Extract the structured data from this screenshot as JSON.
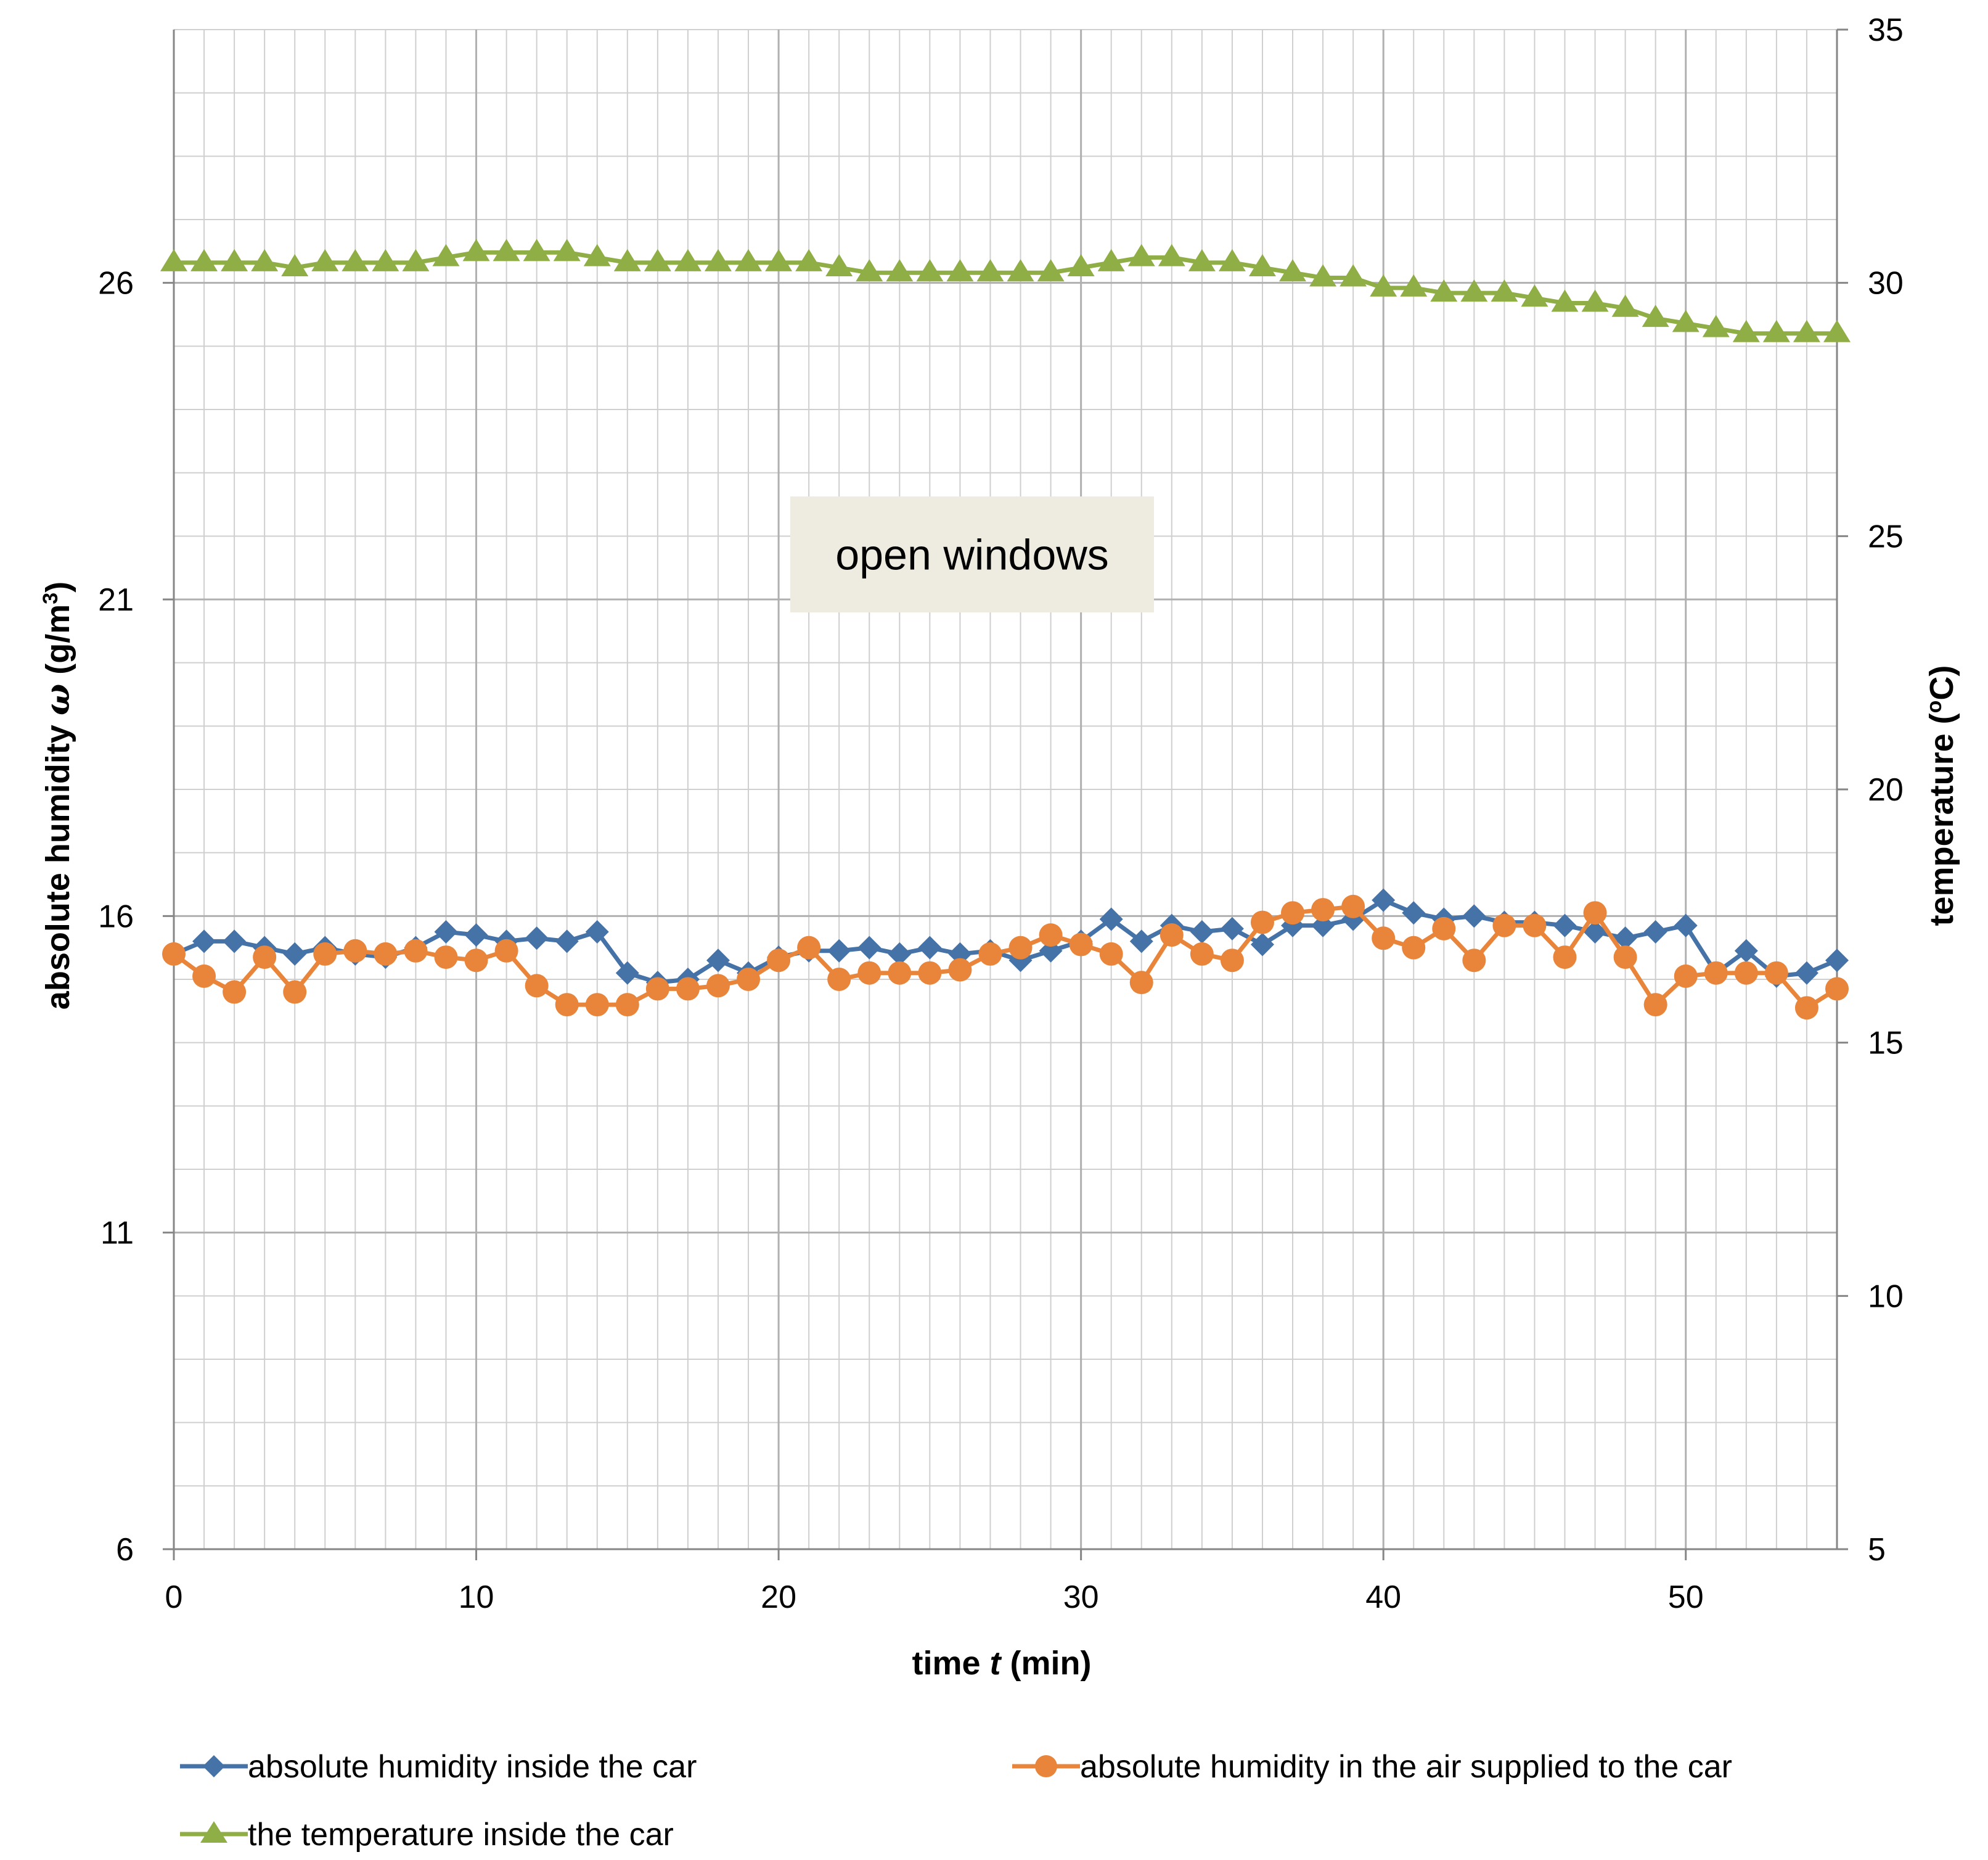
{
  "chart_data": {
    "type": "line",
    "title": "",
    "xlabel_prefix": "time ",
    "xlabel_var": "t",
    "xlabel_suffix": " (min)",
    "ylabel_prefix": "absolute humidity ",
    "ylabel_var": "ω",
    "ylabel_suffix": " (g/m",
    "ylabel_sup": "3",
    "ylabel_close": ")",
    "y2label_prefix": "temperature (",
    "y2label_sup": "o",
    "y2label_suffix": "C)",
    "xlim": [
      0,
      55
    ],
    "ylim": [
      6,
      30
    ],
    "y2lim": [
      5,
      35
    ],
    "x_ticks": [
      0,
      10,
      20,
      30,
      40,
      50
    ],
    "y_ticks": [
      6,
      11,
      16,
      21,
      26
    ],
    "y2_ticks": [
      5,
      10,
      15,
      20,
      25,
      30,
      35
    ],
    "x_tick_labels": [
      "0",
      "10",
      "20",
      "30",
      "40",
      "50"
    ],
    "y_tick_labels": [
      "6",
      "11",
      "16",
      "21",
      "26"
    ],
    "y2_tick_labels": [
      "5",
      "10",
      "15",
      "20",
      "25",
      "30",
      "35"
    ],
    "grid": true,
    "legend_position": "bottom",
    "annotation": {
      "text": "open windows"
    },
    "x": [
      0,
      1,
      2,
      3,
      4,
      5,
      6,
      7,
      8,
      9,
      10,
      11,
      12,
      13,
      14,
      15,
      16,
      17,
      18,
      19,
      20,
      21,
      22,
      23,
      24,
      25,
      26,
      27,
      28,
      29,
      30,
      31,
      32,
      33,
      34,
      35,
      36,
      37,
      38,
      39,
      40,
      41,
      42,
      43,
      44,
      45,
      46,
      47,
      48,
      49,
      50,
      51,
      52,
      53,
      54,
      55
    ],
    "series": [
      {
        "name": "absolute humidity inside the car",
        "axis": "left",
        "color": "#4572A7",
        "marker": "diamond",
        "values": [
          15.4,
          15.6,
          15.6,
          15.5,
          15.4,
          15.5,
          15.4,
          15.35,
          15.5,
          15.75,
          15.7,
          15.6,
          15.65,
          15.6,
          15.75,
          15.1,
          14.95,
          15.0,
          15.3,
          15.1,
          15.35,
          15.45,
          15.45,
          15.5,
          15.4,
          15.5,
          15.4,
          15.45,
          15.3,
          15.45,
          15.6,
          15.95,
          15.6,
          15.85,
          15.75,
          15.8,
          15.55,
          15.85,
          15.85,
          15.95,
          16.25,
          16.05,
          15.95,
          16.0,
          15.9,
          15.9,
          15.85,
          15.75,
          15.65,
          15.75,
          15.85,
          15.1,
          15.45,
          15.05,
          15.1,
          15.3
        ]
      },
      {
        "name": "absolute humidity in the air supplied to the car",
        "axis": "left",
        "color": "#E8853A",
        "marker": "circle",
        "values": [
          15.4,
          15.05,
          14.8,
          15.35,
          14.8,
          15.4,
          15.45,
          15.4,
          15.45,
          15.35,
          15.3,
          15.45,
          14.9,
          14.6,
          14.6,
          14.6,
          14.85,
          14.85,
          14.9,
          15.0,
          15.3,
          15.5,
          15.0,
          15.1,
          15.1,
          15.1,
          15.15,
          15.4,
          15.5,
          15.7,
          15.55,
          15.4,
          14.95,
          15.7,
          15.4,
          15.3,
          15.9,
          16.05,
          16.1,
          16.15,
          15.65,
          15.5,
          15.8,
          15.3,
          15.85,
          15.85,
          15.35,
          16.05,
          15.35,
          14.6,
          15.05,
          15.1,
          15.1,
          15.1,
          14.55,
          14.85
        ]
      },
      {
        "name": "the temperature inside the car",
        "axis": "right",
        "color": "#8FAE46",
        "marker": "triangle",
        "values": [
          30.4,
          30.4,
          30.4,
          30.4,
          30.3,
          30.4,
          30.4,
          30.4,
          30.4,
          30.5,
          30.6,
          30.6,
          30.6,
          30.6,
          30.5,
          30.4,
          30.4,
          30.4,
          30.4,
          30.4,
          30.4,
          30.4,
          30.3,
          30.2,
          30.2,
          30.2,
          30.2,
          30.2,
          30.2,
          30.2,
          30.3,
          30.4,
          30.5,
          30.5,
          30.4,
          30.4,
          30.3,
          30.2,
          30.1,
          30.1,
          29.9,
          29.9,
          29.8,
          29.8,
          29.8,
          29.7,
          29.6,
          29.6,
          29.5,
          29.3,
          29.2,
          29.1,
          29.0,
          29.0,
          29.0,
          29.0
        ]
      }
    ]
  }
}
